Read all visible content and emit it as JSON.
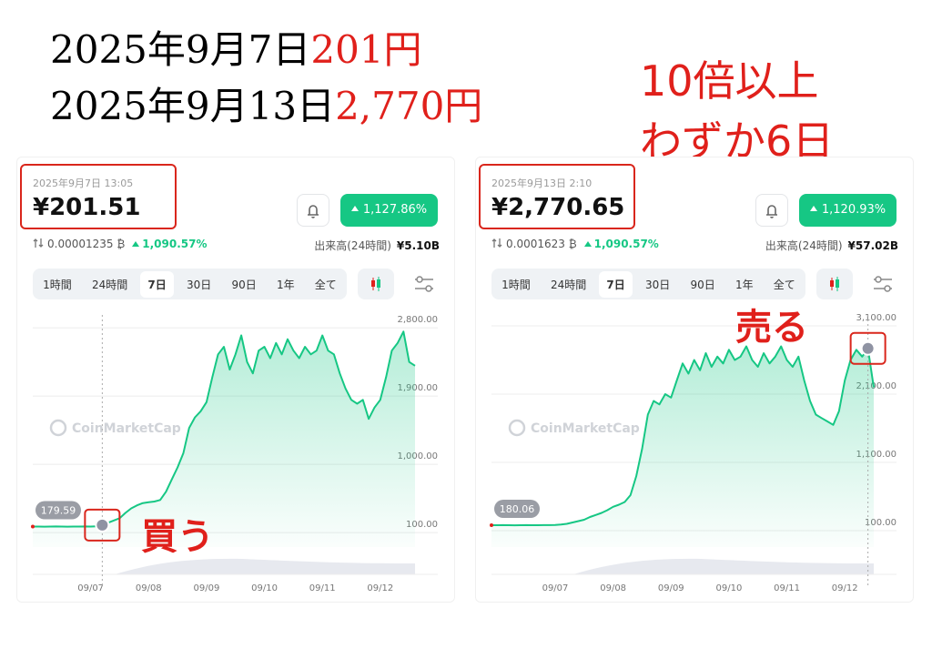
{
  "header": {
    "line1": {
      "date": "2025年9月7日",
      "price": "201円"
    },
    "line2": {
      "date": "2025年9月13日",
      "price": "2,770円"
    },
    "note1": "10倍以上",
    "note2": "わずか6日"
  },
  "panels": [
    {
      "timestamp": "2025年9月7日 13:05",
      "price": "¥201.51",
      "change_badge": "1,127.86%",
      "btc_price": "0.00001235 ₿",
      "btc_change": "1,090.57%",
      "volume_label": "出来高(24時間)",
      "volume": "¥5.10B",
      "tabs": [
        "1時間",
        "24時間",
        "7日",
        "30日",
        "90日",
        "1年",
        "全て"
      ],
      "active_tab": 2,
      "watermark": "CoinMarketCap",
      "start_label": "179.59",
      "annotation": "買う",
      "chart": {
        "type": "line",
        "color": "#16c784",
        "categories": [
          null,
          null,
          null,
          null,
          null,
          null,
          null,
          null,
          null,
          null,
          "09/07",
          null,
          null,
          null,
          null,
          null,
          null,
          null,
          null,
          null,
          "09/08",
          null,
          null,
          null,
          null,
          null,
          null,
          null,
          null,
          null,
          "09/09",
          null,
          null,
          null,
          null,
          null,
          null,
          null,
          null,
          null,
          "09/10",
          null,
          null,
          null,
          null,
          null,
          null,
          null,
          null,
          null,
          "09/11",
          null,
          null,
          null,
          null,
          null,
          null,
          null,
          null,
          null,
          "09/12",
          null,
          null,
          null,
          null,
          null,
          null
        ],
        "values": [
          180,
          180,
          179,
          180,
          181,
          180,
          179,
          180,
          180,
          181,
          180,
          182,
          200,
          230,
          260,
          290,
          360,
          420,
          460,
          490,
          500,
          510,
          530,
          640,
          800,
          960,
          1150,
          1480,
          1620,
          1700,
          1820,
          2150,
          2450,
          2550,
          2250,
          2450,
          2700,
          2350,
          2200,
          2500,
          2550,
          2400,
          2600,
          2450,
          2650,
          2500,
          2400,
          2550,
          2450,
          2500,
          2700,
          2500,
          2450,
          2200,
          2000,
          1850,
          1800,
          1850,
          1600,
          1750,
          1850,
          2150,
          2500,
          2600,
          2750,
          2350,
          2300
        ],
        "ylim": [
          -90,
          2970
        ],
        "yticks": [
          {
            "value": 100,
            "label": "100.00"
          },
          {
            "value": 1000,
            "label": "1,000.00"
          },
          {
            "value": 1900,
            "label": "1,900.00"
          },
          {
            "value": 2800,
            "label": "2,800.00"
          }
        ],
        "grid": true
      }
    },
    {
      "timestamp": "2025年9月13日 2:10",
      "price": "¥2,770.65",
      "change_badge": "1,120.93%",
      "btc_price": "0.0001623 ₿",
      "btc_change": "1,090.57%",
      "volume_label": "出来高(24時間)",
      "volume": "¥57.02B",
      "tabs": [
        "1時間",
        "24時間",
        "7日",
        "30日",
        "90日",
        "1年",
        "全て"
      ],
      "active_tab": 2,
      "watermark": "CoinMarketCap",
      "start_label": "180.06",
      "annotation": "売る",
      "chart": {
        "type": "line",
        "color": "#16c784",
        "categories": [
          null,
          null,
          null,
          null,
          null,
          null,
          null,
          null,
          null,
          null,
          null,
          "09/07",
          null,
          null,
          null,
          null,
          null,
          null,
          null,
          null,
          null,
          "09/08",
          null,
          null,
          null,
          null,
          null,
          null,
          null,
          null,
          null,
          "09/09",
          null,
          null,
          null,
          null,
          null,
          null,
          null,
          null,
          null,
          "09/10",
          null,
          null,
          null,
          null,
          null,
          null,
          null,
          null,
          null,
          "09/11",
          null,
          null,
          null,
          null,
          null,
          null,
          null,
          null,
          null,
          "09/12",
          null,
          null,
          null,
          null,
          null
        ],
        "values": [
          180,
          180,
          181,
          180,
          179,
          180,
          181,
          180,
          180,
          182,
          181,
          183,
          190,
          200,
          220,
          240,
          260,
          300,
          330,
          360,
          400,
          450,
          480,
          520,
          620,
          900,
          1300,
          1800,
          2000,
          1950,
          2100,
          2050,
          2300,
          2550,
          2400,
          2600,
          2450,
          2700,
          2500,
          2650,
          2550,
          2750,
          2600,
          2650,
          2800,
          2600,
          2500,
          2700,
          2550,
          2650,
          2800,
          2600,
          2500,
          2650,
          2300,
          2000,
          1800,
          1750,
          1700,
          1650,
          1850,
          2300,
          2600,
          2750,
          2650,
          2770,
          2200
        ],
        "ylim": [
          -140,
          3260
        ],
        "yticks": [
          {
            "value": 100,
            "label": "100.00"
          },
          {
            "value": 1100,
            "label": "1,100.00"
          },
          {
            "value": 2100,
            "label": "2,100.00"
          },
          {
            "value": 3100,
            "label": "3,100.00"
          }
        ],
        "grid": true
      }
    }
  ]
}
